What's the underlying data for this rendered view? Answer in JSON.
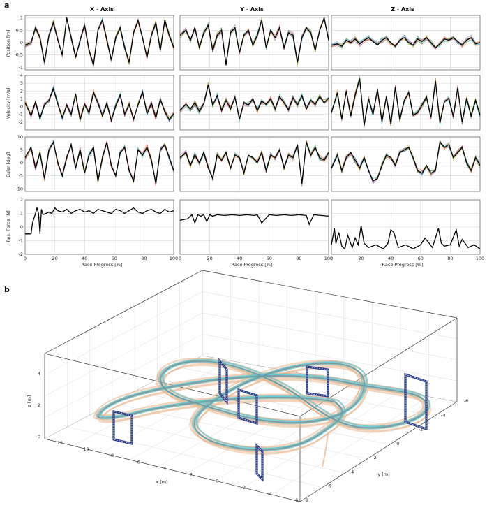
{
  "panel_a_label": "a",
  "panel_b_label": "b",
  "columns": [
    "X - Axis",
    "Y - Axis",
    "Z - Axis"
  ],
  "row_ylabels": [
    "Position [m]",
    "Velocity [m/s]",
    "Euler [deg]",
    "Res. Force [N]"
  ],
  "xlabel": "Race Progress [%]",
  "xticks": [
    "0",
    "20",
    "40",
    "60",
    "80",
    "100"
  ],
  "row_yticks": [
    [
      "1",
      "0.5",
      "0",
      "-0.5",
      "-1"
    ],
    [
      "4",
      "3",
      "2",
      "1",
      "0",
      "-1",
      "-2"
    ],
    [
      "10",
      "5",
      "0",
      "-5",
      "-10"
    ],
    [
      "2",
      "1",
      "0",
      "-1",
      "-2"
    ]
  ],
  "b_axes": {
    "xlabel": "x [m]",
    "ylabel": "y [m]",
    "zlabel": "z [m]",
    "xticks": [
      "12",
      "10",
      "8",
      "6",
      "4",
      "2",
      "0",
      "-2",
      "-4",
      "-6"
    ],
    "yticks": [
      "-6",
      "-4",
      "-2",
      "0",
      "2",
      "4",
      "6",
      "8"
    ],
    "zticks": [
      "4",
      "2",
      "0"
    ]
  },
  "colors": {
    "reference": "#000000",
    "runs": [
      "#1f77b4",
      "#ff7f0e",
      "#2ca02c",
      "#d62728",
      "#9467bd",
      "#8c564b",
      "#e377c2",
      "#17becf",
      "#bcbd22"
    ],
    "traj_warm": "#e8b48a",
    "traj_cool": "#4fc3d9",
    "gate": "#2c3f8c"
  },
  "chart_data": [
    {
      "type": "line",
      "panel": "a",
      "grid": true,
      "rows": [
        {
          "ylabel": "Position [m]",
          "ylim": [
            -1.1,
            1.1
          ],
          "yticks": [
            1,
            0.5,
            0,
            -0.5,
            -1
          ]
        },
        {
          "ylabel": "Velocity [m/s]",
          "ylim": [
            -3,
            4
          ],
          "yticks": [
            4,
            3,
            2,
            1,
            0,
            -1,
            -2
          ]
        },
        {
          "ylabel": "Euler [deg]",
          "ylim": [
            -11,
            10
          ],
          "yticks": [
            10,
            5,
            0,
            -5,
            -10
          ]
        },
        {
          "ylabel": "Res. Force [N]",
          "ylim": [
            -2,
            2
          ],
          "yticks": [
            2,
            1,
            0,
            -1,
            -2
          ]
        }
      ],
      "columns": [
        "X - Axis",
        "Y - Axis",
        "Z - Axis"
      ],
      "xlabel": "Race Progress [%]",
      "xlim": [
        0,
        100
      ],
      "series": [
        {
          "row": 0,
          "col": 0,
          "x": [
            0,
            4,
            7,
            10,
            13,
            16,
            19,
            22,
            25,
            28,
            31,
            34,
            37,
            40,
            43,
            46,
            49,
            52,
            55,
            58,
            61,
            64,
            67,
            70,
            73,
            76,
            79,
            82,
            85,
            88,
            91,
            94,
            97,
            100
          ],
          "y": [
            -0.1,
            0.0,
            0.6,
            0.2,
            -0.8,
            0.3,
            0.8,
            0.1,
            -0.5,
            1.0,
            0.2,
            -0.6,
            0.1,
            0.7,
            -0.3,
            -0.9,
            0.5,
            0.9,
            0.1,
            -0.7,
            0.2,
            0.6,
            -0.2,
            -0.8,
            0.4,
            0.9,
            0.2,
            -0.6,
            0.3,
            0.8,
            -0.3,
            0.9,
            0.3,
            -0.2
          ]
        },
        {
          "row": 0,
          "col": 1,
          "x": [
            0,
            4,
            7,
            10,
            13,
            16,
            19,
            22,
            25,
            28,
            31,
            34,
            37,
            40,
            43,
            46,
            49,
            52,
            55,
            58,
            61,
            64,
            67,
            70,
            73,
            76,
            79,
            82,
            85,
            88,
            91,
            94,
            97,
            100
          ],
          "y": [
            0.3,
            0.5,
            0.1,
            0.6,
            -0.2,
            0.4,
            0.7,
            -0.3,
            0.3,
            0.5,
            -0.9,
            0.4,
            0.6,
            -0.4,
            0.3,
            0.5,
            -0.1,
            0.3,
            0.9,
            -0.2,
            0.5,
            0.2,
            0.6,
            -0.2,
            0.4,
            0.3,
            -0.8,
            0.2,
            0.6,
            0.4,
            -0.3,
            0.5,
            1.0,
            0.1
          ]
        },
        {
          "row": 0,
          "col": 2,
          "x": [
            0,
            4,
            7,
            10,
            13,
            16,
            19,
            22,
            25,
            28,
            31,
            34,
            37,
            40,
            43,
            46,
            49,
            52,
            55,
            58,
            61,
            64,
            67,
            70,
            73,
            76,
            79,
            82,
            85,
            88,
            91,
            94,
            97,
            100
          ],
          "y": [
            -0.1,
            -0.05,
            -0.15,
            0.1,
            0.0,
            0.15,
            -0.05,
            0.1,
            0.2,
            0.05,
            -0.1,
            0.1,
            0.2,
            0.0,
            -0.15,
            0.1,
            0.2,
            0.0,
            -0.1,
            0.15,
            0.05,
            0.2,
            0.0,
            -0.2,
            -0.05,
            0.15,
            0.1,
            0.2,
            0.05,
            -0.1,
            0.1,
            0.2,
            -0.05,
            0.0
          ]
        },
        {
          "row": 1,
          "col": 0,
          "x": [
            0,
            4,
            7,
            10,
            13,
            16,
            19,
            22,
            25,
            28,
            31,
            34,
            37,
            40,
            43,
            46,
            49,
            52,
            55,
            58,
            61,
            64,
            67,
            70,
            73,
            76,
            79,
            82,
            85,
            88,
            91,
            94,
            97,
            100
          ],
          "y": [
            0.5,
            -1.2,
            0.6,
            -1.5,
            0.2,
            0.8,
            2.3,
            0.3,
            -1.4,
            0.2,
            -1.0,
            1.6,
            -1.7,
            0.3,
            -0.8,
            1.8,
            0.5,
            -1.2,
            0.4,
            -1.8,
            0.1,
            1.5,
            -1.0,
            0.3,
            -1.6,
            0.2,
            1.9,
            -0.9,
            0.4,
            -1.4,
            0.9,
            -0.6,
            -1.7,
            -0.9
          ]
        },
        {
          "row": 1,
          "col": 1,
          "x": [
            0,
            4,
            7,
            10,
            13,
            16,
            19,
            22,
            25,
            28,
            31,
            34,
            37,
            40,
            43,
            46,
            49,
            52,
            55,
            58,
            61,
            64,
            67,
            70,
            73,
            76,
            79,
            82,
            85,
            88,
            91,
            94,
            97,
            100
          ],
          "y": [
            -0.5,
            0.3,
            -0.3,
            0.5,
            -0.6,
            0.4,
            2.8,
            0.2,
            1.4,
            -0.5,
            0.8,
            -0.3,
            1.2,
            -1.6,
            0.5,
            0.2,
            1.0,
            -0.5,
            0.7,
            0.3,
            1.0,
            -0.3,
            1.3,
            0.5,
            -0.4,
            1.1,
            0.2,
            1.4,
            -0.3,
            0.8,
            0.3,
            1.3,
            0.5,
            1.1
          ]
        },
        {
          "row": 1,
          "col": 2,
          "x": [
            0,
            4,
            7,
            10,
            13,
            16,
            19,
            22,
            25,
            28,
            31,
            34,
            37,
            40,
            43,
            46,
            49,
            52,
            55,
            58,
            61,
            64,
            67,
            70,
            73,
            76,
            79,
            82,
            85,
            88,
            91,
            94,
            97,
            100
          ],
          "y": [
            -0.8,
            1.8,
            -1.6,
            2.0,
            -1.2,
            1.5,
            3.6,
            -2.4,
            1.0,
            -1.0,
            2.2,
            -1.9,
            1.3,
            -2.2,
            2.5,
            -1.7,
            0.8,
            1.8,
            -1.1,
            -0.8,
            0.2,
            1.2,
            -1.4,
            3.3,
            -2.1,
            0.6,
            1.1,
            -1.3,
            2.4,
            -2.0,
            1.1,
            -1.2,
            0.8,
            -1.1
          ]
        },
        {
          "row": 2,
          "col": 0,
          "x": [
            0,
            4,
            7,
            10,
            13,
            16,
            19,
            22,
            25,
            28,
            31,
            34,
            37,
            40,
            43,
            46,
            49,
            52,
            55,
            58,
            61,
            64,
            67,
            70,
            73,
            76,
            79,
            82,
            85,
            88,
            91,
            94,
            97,
            100
          ],
          "y": [
            2,
            6,
            -2,
            4,
            -6,
            5,
            8,
            0,
            -5,
            2,
            7,
            -2,
            5,
            -4,
            3,
            6,
            -7,
            2,
            8,
            -1,
            -5,
            4,
            6,
            -3,
            -7,
            5,
            3,
            6,
            1,
            -8,
            5,
            7,
            2,
            -3
          ]
        },
        {
          "row": 2,
          "col": 1,
          "x": [
            0,
            4,
            7,
            10,
            13,
            16,
            19,
            22,
            25,
            28,
            31,
            34,
            37,
            40,
            43,
            46,
            49,
            52,
            55,
            58,
            61,
            64,
            67,
            70,
            73,
            76,
            79,
            82,
            85,
            88,
            91,
            94,
            97,
            100
          ],
          "y": [
            2,
            4,
            -1,
            3,
            0,
            4,
            -2,
            -6,
            3,
            1,
            4,
            -2,
            3,
            2,
            -4,
            3,
            2,
            0,
            4,
            -3,
            3,
            2,
            5,
            -2,
            3,
            2,
            7,
            -8,
            8,
            3,
            6,
            2,
            1,
            4
          ]
        },
        {
          "row": 2,
          "col": 2,
          "x": [
            0,
            4,
            7,
            10,
            13,
            16,
            19,
            22,
            25,
            28,
            31,
            34,
            37,
            40,
            43,
            46,
            49,
            52,
            55,
            58,
            61,
            64,
            67,
            70,
            73,
            76,
            79,
            82,
            85,
            88,
            91,
            94,
            97,
            100
          ],
          "y": [
            -2,
            3,
            -3,
            2,
            4,
            1,
            -2,
            2,
            -3,
            -7,
            -6,
            -1,
            3,
            2,
            -1,
            4,
            5,
            6,
            2,
            -3,
            -4,
            -1,
            -4,
            -3,
            8,
            6,
            7,
            2,
            4,
            6,
            0,
            -3,
            2,
            -1
          ]
        },
        {
          "row": 3,
          "col": 0,
          "x": [
            0,
            4,
            5,
            7,
            8,
            9,
            10,
            11,
            12,
            14,
            16,
            18,
            20,
            22,
            25,
            28,
            31,
            34,
            37,
            40,
            43,
            46,
            49,
            52,
            55,
            58,
            61,
            64,
            67,
            70,
            73,
            76,
            79,
            82,
            85,
            88,
            91,
            94,
            97,
            100
          ],
          "y": [
            -0.5,
            -0.5,
            0.3,
            1.0,
            1.4,
            1.0,
            -0.5,
            1.3,
            0.9,
            1.0,
            1.1,
            1.0,
            1.4,
            1.2,
            1.1,
            1.3,
            1.0,
            1.2,
            1.3,
            1.1,
            1.2,
            1.0,
            1.3,
            1.2,
            1.1,
            1.0,
            1.3,
            1.2,
            1.0,
            1.2,
            1.4,
            1.1,
            1.0,
            1.2,
            1.3,
            1.1,
            1.0,
            1.3,
            1.1,
            1.2
          ]
        },
        {
          "row": 3,
          "col": 1,
          "x": [
            0,
            5,
            8,
            10,
            12,
            14,
            16,
            18,
            20,
            22,
            25,
            30,
            35,
            40,
            45,
            50,
            52,
            55,
            60,
            65,
            70,
            75,
            80,
            85,
            87,
            90,
            95,
            100
          ],
          "y": [
            0.5,
            0.6,
            0.9,
            0.3,
            0.9,
            0.8,
            0.9,
            0.4,
            0.9,
            0.8,
            0.9,
            0.85,
            0.9,
            0.85,
            0.9,
            0.85,
            0.9,
            0.3,
            0.9,
            0.85,
            0.9,
            0.85,
            0.9,
            0.85,
            0.2,
            0.9,
            0.85,
            0.8
          ]
        },
        {
          "row": 3,
          "col": 2,
          "x": [
            0,
            2,
            3,
            5,
            7,
            9,
            11,
            14,
            16,
            18,
            20,
            22,
            25,
            30,
            35,
            38,
            40,
            42,
            45,
            50,
            55,
            60,
            63,
            68,
            72,
            74,
            76,
            80,
            84,
            86,
            88,
            92,
            96,
            100
          ],
          "y": [
            -1.3,
            -0.1,
            -1.2,
            -0.4,
            -1.4,
            -1.6,
            -0.6,
            -1.5,
            -0.8,
            -1.3,
            0.1,
            -1.2,
            -1.5,
            -1.3,
            -1.6,
            -1.2,
            -0.2,
            -0.4,
            -1.5,
            -1.3,
            -1.6,
            -1.3,
            -0.8,
            -1.5,
            -0.1,
            -1.2,
            -1.4,
            -1.3,
            -0.2,
            -1.4,
            -0.9,
            -1.5,
            -1.3,
            -1.6
          ]
        }
      ]
    },
    {
      "type": "line",
      "panel": "b",
      "projection": "3d",
      "xlabel": "x [m]",
      "ylabel": "y [m]",
      "zlabel": "z [m]",
      "xlim": [
        -6,
        12
      ],
      "ylim": [
        -6,
        8
      ],
      "zlim": [
        0,
        4
      ],
      "grid": true,
      "series": [
        {
          "x": [
            10,
            7,
            3,
            0,
            -3,
            -5,
            -5,
            -3,
            0,
            3,
            6,
            9,
            11,
            10
          ],
          "y": [
            0,
            -2,
            -3,
            -3,
            -2,
            0,
            2,
            4,
            5,
            4,
            3,
            2,
            1,
            0
          ],
          "z": [
            1.5,
            2.0,
            2.5,
            3.0,
            3.2,
            3.4,
            3.2,
            2.8,
            2.3,
            2.0,
            1.8,
            1.6,
            1.5,
            1.5
          ]
        }
      ]
    }
  ]
}
